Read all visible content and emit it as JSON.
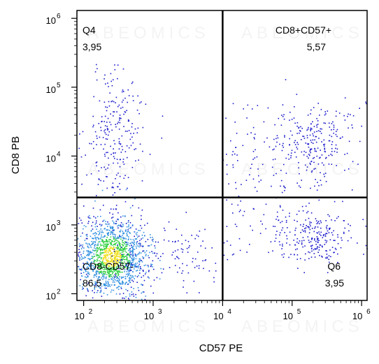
{
  "chart_data": {
    "type": "scatter",
    "title": "",
    "xlabel": "CD57 PE",
    "ylabel": "CD8 PB",
    "xscale": "log",
    "yscale": "log",
    "xlim": [
      80,
      1200000
    ],
    "ylim": [
      80,
      1300000
    ],
    "x_ticks": [
      {
        "value": 100,
        "base": "10",
        "exp": "2"
      },
      {
        "value": 1000,
        "base": "10",
        "exp": "3"
      },
      {
        "value": 10000,
        "base": "10",
        "exp": "4"
      },
      {
        "value": 100000,
        "base": "10",
        "exp": "5"
      },
      {
        "value": 1000000,
        "base": "10",
        "exp": "6"
      }
    ],
    "y_ticks": [
      {
        "value": 100,
        "base": "10",
        "exp": "2"
      },
      {
        "value": 1000,
        "base": "10",
        "exp": "3"
      },
      {
        "value": 10000,
        "base": "10",
        "exp": "4"
      },
      {
        "value": 100000,
        "base": "10",
        "exp": "5"
      },
      {
        "value": 1000000,
        "base": "10",
        "exp": "6"
      }
    ],
    "gates": {
      "x": 10000,
      "y": 2500
    },
    "quadrants": [
      {
        "name": "Q4",
        "value": "3,95",
        "position": "top-left"
      },
      {
        "name": "CD8+CD57+",
        "value": "5,57",
        "position": "top-right"
      },
      {
        "name": "CD8-CD57-",
        "value": "86,5",
        "position": "bottom-left"
      },
      {
        "name": "Q6",
        "value": "3,95",
        "position": "bottom-right"
      }
    ],
    "watermark": "ABEOMICS",
    "colors": {
      "sparse": "#1a1acc",
      "medium": "#2f8fe0",
      "dense": "#30d040",
      "densest": "#f0e020",
      "gate": "#000000"
    },
    "populations": [
      {
        "name": "CD8-CD57-",
        "x_center": 250,
        "y_center": 350,
        "x_spread_decades": 0.28,
        "y_spread_decades": 0.3,
        "share": 0.865
      },
      {
        "name": "Q4",
        "x_center": 280,
        "y_center": 20000,
        "x_spread_decades": 0.2,
        "y_spread_decades": 0.5,
        "share": 0.0395
      },
      {
        "name": "CD8+CD57+",
        "x_center": 200000,
        "y_center": 15000,
        "x_spread_decades": 0.3,
        "y_spread_decades": 0.3,
        "share": 0.0557
      },
      {
        "name": "Q6",
        "x_center": 200000,
        "y_center": 700,
        "x_spread_decades": 0.3,
        "y_spread_decades": 0.2,
        "share": 0.0395
      }
    ]
  }
}
